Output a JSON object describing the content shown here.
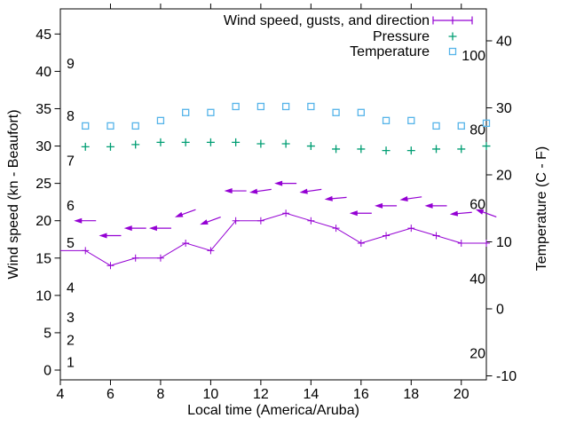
{
  "chart_data": {
    "type": "line",
    "description": "Weather station plot: wind speed and gusts with direction arrows, pressure and temperature versus local time",
    "axes": {
      "x": {
        "label": "Local time (America/Aruba)",
        "range": [
          4,
          21
        ],
        "tick_values": [
          4,
          6,
          8,
          10,
          12,
          14,
          16,
          18,
          20
        ]
      },
      "y_left": {
        "label": "Wind speed (kn - Beaufort)",
        "tick_values_kn": [
          0,
          5,
          10,
          15,
          20,
          25,
          30,
          35,
          40,
          45
        ],
        "beaufort_inner_labels": [
          {
            "label": "1",
            "kn": 1
          },
          {
            "label": "2",
            "kn": 4
          },
          {
            "label": "3",
            "kn": 7
          },
          {
            "label": "4",
            "kn": 11
          },
          {
            "label": "5",
            "kn": 17
          },
          {
            "label": "6",
            "kn": 22
          },
          {
            "label": "7",
            "kn": 28
          },
          {
            "label": "8",
            "kn": 34
          },
          {
            "label": "9",
            "kn": 41
          }
        ]
      },
      "y_right": {
        "label": "Temperature (C - F)",
        "tick_values_c": [
          -10,
          0,
          10,
          20,
          30,
          40
        ],
        "fahrenheit_inner_labels": [
          {
            "label": "20",
            "c": -6.67
          },
          {
            "label": "40",
            "c": 4.44
          },
          {
            "label": "60",
            "c": 15.56
          },
          {
            "label": "80",
            "c": 26.67
          },
          {
            "label": "100",
            "c": 37.78
          }
        ]
      }
    },
    "legend": {
      "position": "top-right-inside",
      "items": [
        {
          "label": "Wind speed, gusts, and direction",
          "marker": "errorbar-line",
          "color": "#9400D3"
        },
        {
          "label": "Pressure",
          "marker": "plus",
          "color": "#009E73"
        },
        {
          "label": "Temperature",
          "marker": "open-square",
          "color": "#56B4E9"
        }
      ]
    },
    "x_hours": [
      5,
      6,
      7,
      8,
      9,
      10,
      11,
      12,
      13,
      14,
      15,
      16,
      17,
      18,
      19,
      20,
      21
    ],
    "series": [
      {
        "name": "Wind speed",
        "unit": "kn",
        "color": "#9400D3",
        "marker": "plus",
        "line": true,
        "left_edge_point": {
          "hour": 4,
          "value": 16
        },
        "values": [
          16,
          14,
          15,
          15,
          17,
          16,
          20,
          20,
          21,
          20,
          19,
          17,
          18,
          19,
          18,
          17,
          17
        ]
      },
      {
        "name": "Wind gusts and direction",
        "unit": "kn",
        "color": "#9400D3",
        "marker": "left-arrow",
        "line": false,
        "values": [
          20,
          18,
          19,
          19,
          21,
          20,
          24,
          24,
          25,
          24,
          23,
          21,
          22,
          23,
          22,
          21,
          21
        ],
        "arrow_tilt_deg": [
          0,
          0,
          0,
          0,
          20,
          20,
          0,
          8,
          0,
          8,
          5,
          0,
          0,
          8,
          0,
          5,
          -20
        ]
      },
      {
        "name": "Pressure",
        "unit": "",
        "color": "#009E73",
        "marker": "plus",
        "line": false,
        "axis_note": "no pressure scale shown; points plotted against left-axis numbers",
        "values": [
          29.9,
          29.9,
          30.2,
          30.5,
          30.5,
          30.5,
          30.5,
          30.3,
          30.3,
          30.0,
          29.6,
          29.6,
          29.4,
          29.4,
          29.6,
          29.6,
          30.0
        ]
      },
      {
        "name": "Temperature",
        "unit": "C",
        "color": "#56B4E9",
        "marker": "open-square",
        "line": false,
        "values": [
          27.3,
          27.3,
          27.3,
          28.1,
          29.3,
          29.3,
          30.2,
          30.2,
          30.2,
          30.2,
          29.3,
          29.3,
          28.1,
          28.1,
          27.3,
          27.3,
          27.7
        ]
      }
    ],
    "colors": {
      "wind": "#9400D3",
      "pressure": "#009E73",
      "temperature": "#56B4E9",
      "axis": "#000000",
      "background": "#FFFFFF"
    }
  }
}
